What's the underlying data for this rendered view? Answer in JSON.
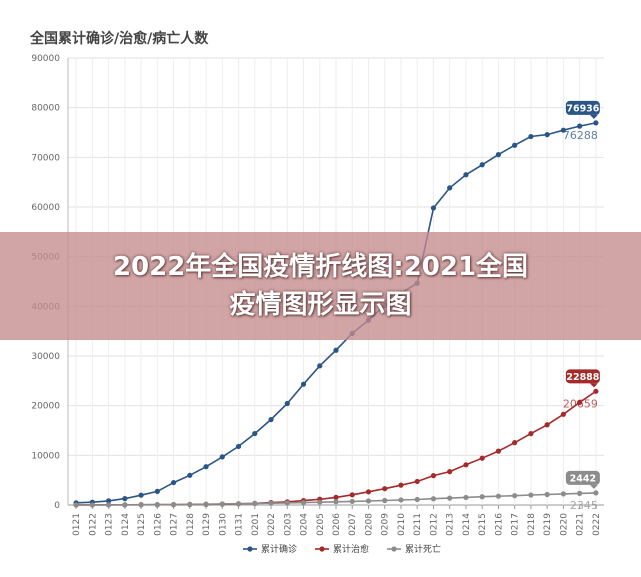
{
  "overlay": {
    "line1": "2022年全国疫情折线图:2021全国",
    "line2": "疫情图形显示图"
  },
  "chart_data": {
    "type": "line",
    "title": "全国累计确诊/治愈/病亡人数",
    "xlabel": "",
    "ylabel": "",
    "ylim": [
      0,
      90000
    ],
    "yticks": [
      0,
      10000,
      20000,
      30000,
      40000,
      50000,
      60000,
      70000,
      80000,
      90000
    ],
    "grid": true,
    "legend": "bottom",
    "categories": [
      "0121",
      "0122",
      "0123",
      "0124",
      "0125",
      "0126",
      "0127",
      "0128",
      "0129",
      "0130",
      "0131",
      "0201",
      "0202",
      "0203",
      "0204",
      "0205",
      "0206",
      "0207",
      "0208",
      "0209",
      "0210",
      "0211",
      "0212",
      "0213",
      "0214",
      "0215",
      "0216",
      "0217",
      "0218",
      "0219",
      "0220",
      "0221",
      "0222"
    ],
    "series": [
      {
        "name": "累计确诊",
        "color": "#2a5587",
        "values": [
          440,
          571,
          830,
          1287,
          1975,
          2744,
          4515,
          5974,
          7711,
          9692,
          11791,
          14380,
          17205,
          20438,
          24324,
          28018,
          31161,
          34546,
          37198,
          40171,
          42638,
          44653,
          59804,
          63851,
          66492,
          68500,
          70548,
          72436,
          74185,
          74576,
          75465,
          76288,
          76936
        ],
        "end_label_top": "76936",
        "end_label_bottom": "76288"
      },
      {
        "name": "累计治愈",
        "color": "#a52a2a",
        "values": [
          28,
          28,
          34,
          38,
          49,
          51,
          60,
          103,
          124,
          171,
          243,
          328,
          475,
          632,
          892,
          1153,
          1540,
          2050,
          2649,
          3281,
          3996,
          4740,
          5911,
          6723,
          8096,
          9419,
          10844,
          12552,
          14376,
          16155,
          18264,
          20659,
          22888
        ],
        "end_label_top": "22888",
        "end_label_bottom": "20659"
      },
      {
        "name": "累计死亡",
        "color": "#8c8c8c",
        "values": [
          9,
          17,
          25,
          41,
          56,
          80,
          106,
          132,
          170,
          213,
          259,
          304,
          361,
          425,
          490,
          563,
          636,
          722,
          811,
          908,
          1016,
          1113,
          1259,
          1380,
          1523,
          1665,
          1770,
          1868,
          2004,
          2118,
          2236,
          2345,
          2442
        ],
        "end_label_top": "2442",
        "end_label_bottom": "2345"
      }
    ]
  }
}
